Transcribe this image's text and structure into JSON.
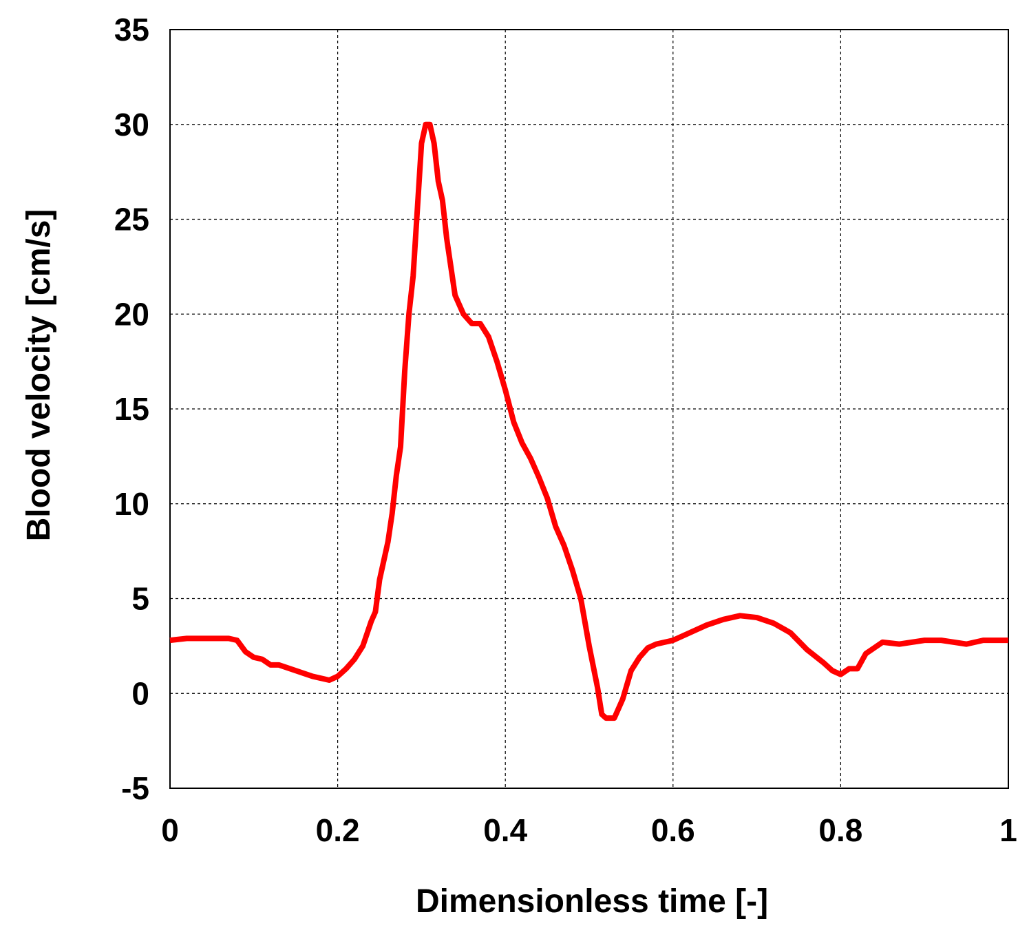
{
  "chart_data": {
    "type": "line",
    "x_label": "Dimensionless time [-]",
    "y_label": "Blood velocity [cm/s]",
    "xlim": [
      0,
      1
    ],
    "ylim": [
      -5,
      35
    ],
    "xticks": [
      0,
      0.2,
      0.4,
      0.6,
      0.8,
      1
    ],
    "yticks": [
      -5,
      0,
      5,
      10,
      15,
      20,
      25,
      30,
      35
    ],
    "grid": true,
    "x": [
      0,
      0.02,
      0.07,
      0.08,
      0.09,
      0.1,
      0.11,
      0.12,
      0.13,
      0.15,
      0.17,
      0.19,
      0.2,
      0.21,
      0.22,
      0.23,
      0.24,
      0.245,
      0.25,
      0.26,
      0.265,
      0.27,
      0.275,
      0.28,
      0.285,
      0.29,
      0.295,
      0.3,
      0.305,
      0.31,
      0.315,
      0.32,
      0.325,
      0.33,
      0.335,
      0.34,
      0.35,
      0.36,
      0.37,
      0.38,
      0.39,
      0.4,
      0.41,
      0.42,
      0.43,
      0.44,
      0.45,
      0.46,
      0.47,
      0.48,
      0.49,
      0.5,
      0.51,
      0.515,
      0.52,
      0.53,
      0.54,
      0.55,
      0.56,
      0.57,
      0.58,
      0.6,
      0.62,
      0.64,
      0.66,
      0.68,
      0.7,
      0.72,
      0.74,
      0.76,
      0.78,
      0.79,
      0.8,
      0.81,
      0.82,
      0.83,
      0.85,
      0.87,
      0.9,
      0.92,
      0.95,
      0.97,
      1.0
    ],
    "series": [
      {
        "color": "#ff0000",
        "values": [
          2.8,
          2.9,
          2.9,
          2.8,
          2.2,
          1.9,
          1.8,
          1.5,
          1.5,
          1.2,
          0.9,
          0.7,
          0.9,
          1.3,
          1.8,
          2.5,
          3.8,
          4.3,
          6.0,
          8.0,
          9.5,
          11.5,
          13.0,
          17,
          20,
          22,
          25.5,
          29,
          30,
          30,
          29,
          27,
          26,
          24,
          22.5,
          21,
          20,
          19.5,
          19.5,
          18.8,
          17.5,
          16,
          14.3,
          13.2,
          12.4,
          11.4,
          10.3,
          8.8,
          7.8,
          6.5,
          5.0,
          2.5,
          0.3,
          -1.1,
          -1.3,
          -1.3,
          -0.3,
          1.2,
          1.9,
          2.4,
          2.6,
          2.8,
          3.2,
          3.6,
          3.9,
          4.1,
          4.0,
          3.7,
          3.2,
          2.3,
          1.6,
          1.2,
          1.0,
          1.3,
          1.3,
          2.1,
          2.7,
          2.6,
          2.8,
          2.8,
          2.6,
          2.8,
          2.8
        ]
      }
    ]
  }
}
